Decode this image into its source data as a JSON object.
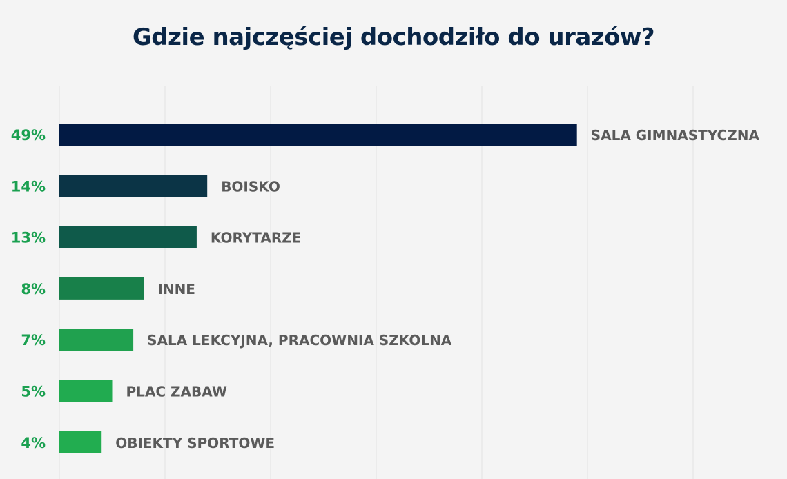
{
  "chart_data": {
    "type": "bar",
    "orientation": "horizontal",
    "title": "Gdzie najczęściej dochodziło do urazów?",
    "categories": [
      "SALA GIMNASTYCZNA",
      "BOISKO",
      "KORYTARZE",
      "INNE",
      "SALA LEKCYJNA, PRACOWNIA SZKOLNA",
      "PLAC ZABAW",
      "OBIEKTY SPORTOWE"
    ],
    "values": [
      49,
      14,
      13,
      8,
      7,
      5,
      4
    ],
    "value_labels": [
      "49%",
      "14%",
      "13%",
      "8%",
      "7%",
      "5%",
      "4%"
    ],
    "colors": [
      "#021a44",
      "#0b3446",
      "#0f5a4a",
      "#18804a",
      "#20a14f",
      "#21ab50",
      "#22ad50"
    ],
    "xlim": [
      0,
      60
    ],
    "grid": true,
    "xlabel": "",
    "ylabel": "",
    "value_label_color": "#1aa050",
    "category_label_color": "#5a5a5a"
  }
}
